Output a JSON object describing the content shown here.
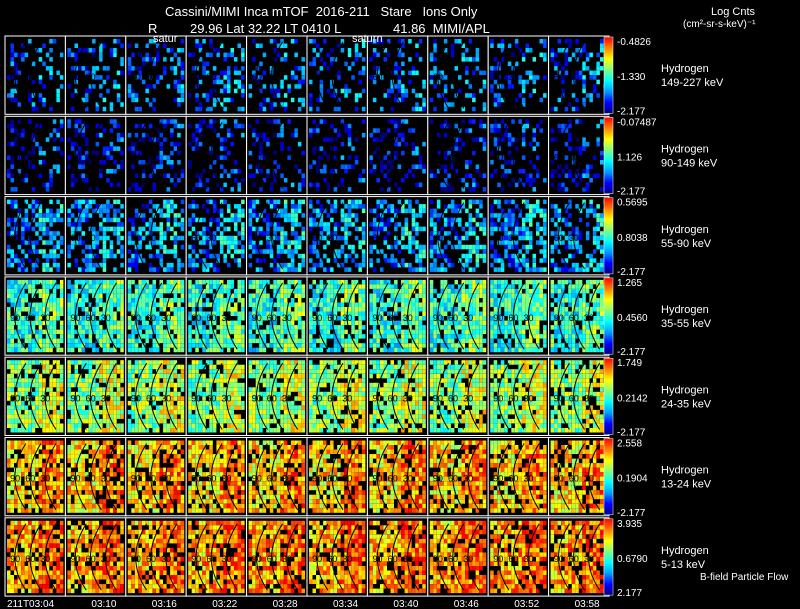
{
  "header": {
    "title": "Cassini/MIMI Inca mTOF  2016-211   Stare   Ions Only",
    "r_label": "R",
    "position": "29.96 Lat 32.22 LT 0410 L",
    "distance_attr": "41.86  MIMI/APL"
  },
  "colorbar_title": {
    "line1": "Log Cnts",
    "line2": "(cm²-sr-s-keV)⁻¹"
  },
  "markers": {
    "left": "satur",
    "right": "saturn"
  },
  "footer": {
    "bfield_label": "B-field Particle Flow"
  },
  "chart_data": {
    "type": "heatmap",
    "title": "Cassini/MIMI Inca mTOF  2016-211   Stare   Ions Only",
    "colormap": [
      "#000080",
      "#0000ff",
      "#00a0ff",
      "#00ffff",
      "#80ff80",
      "#ffff00",
      "#ff8000",
      "#ff0000"
    ],
    "times": [
      "211T03:04",
      "03:10",
      "03:16",
      "03:22",
      "03:28",
      "03:34",
      "03:40",
      "03:46",
      "03:52",
      "03:58"
    ],
    "panels": [
      {
        "species": "Hydrogen",
        "energy": "149-227 keV",
        "cmax": "-0.4826",
        "cmid": "-1.330",
        "cmin": "-2.177",
        "fill": 0.3,
        "level": 0.25,
        "contours": [
          "60",
          "30"
        ]
      },
      {
        "species": "Hydrogen",
        "energy": "90-149 keV",
        "cmax": "-0.07487",
        "cmid": "1.126",
        "cmin": "-2.177",
        "fill": 0.28,
        "level": 0.15,
        "contours": [
          "60",
          "30"
        ]
      },
      {
        "species": "Hydrogen",
        "energy": "55-90 keV",
        "cmax": "0.5695",
        "cmid": "0.8038",
        "cmin": "-2.177",
        "fill": 0.55,
        "level": 0.32,
        "contours": [
          "60",
          "30"
        ]
      },
      {
        "species": "Hydrogen",
        "energy": "35-55 keV",
        "cmax": "1.265",
        "cmid": "0.4560",
        "cmin": "-2.177",
        "fill": 0.85,
        "level": 0.5,
        "contours": [
          "90",
          "60",
          "30"
        ]
      },
      {
        "species": "Hydrogen",
        "energy": "24-35 keV",
        "cmax": "1.749",
        "cmid": "0.2142",
        "cmin": "-2.177",
        "fill": 0.85,
        "level": 0.62,
        "contours": [
          "90",
          "60",
          "30"
        ]
      },
      {
        "species": "Hydrogen",
        "energy": "13-24 keV",
        "cmax": "2.558",
        "cmid": "0.1904",
        "cmin": "-2.177",
        "fill": 0.82,
        "level": 0.8,
        "contours": [
          "90",
          "60",
          "30"
        ]
      },
      {
        "species": "Hydrogen",
        "energy": "5-13 keV",
        "cmax": "3.935",
        "cmid": "0.6790",
        "cmin": "2.177",
        "fill": 0.82,
        "level": 0.85,
        "contours": [
          "90",
          "60",
          "30"
        ]
      }
    ]
  }
}
